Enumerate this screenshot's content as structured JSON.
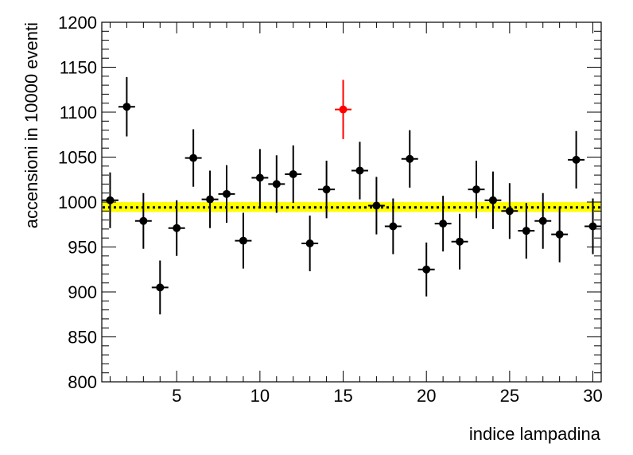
{
  "chart_data": {
    "type": "scatter",
    "title": "",
    "xlabel": "indice lampadina",
    "ylabel": "accensioni in 10000 eventi",
    "xlim": [
      0.5,
      30.5
    ],
    "ylim": [
      800,
      1200
    ],
    "x_ticks": [
      "5",
      "10",
      "15",
      "20",
      "25",
      "30"
    ],
    "y_ticks": [
      "800",
      "850",
      "900",
      "950",
      "1000",
      "1050",
      "1100",
      "1150",
      "1200"
    ],
    "grid": false,
    "mean_line": {
      "value": 994,
      "band": [
        989,
        1000
      ],
      "band_color": "#ffff00",
      "line_color": "#000000",
      "line_style": "dotted"
    },
    "series": [
      {
        "color": "#000000",
        "points": [
          {
            "x": 1,
            "y": 1002,
            "err": 31
          },
          {
            "x": 2,
            "y": 1106,
            "err": 33
          },
          {
            "x": 3,
            "y": 979,
            "err": 31
          },
          {
            "x": 4,
            "y": 905,
            "err": 30
          },
          {
            "x": 5,
            "y": 971,
            "err": 31
          },
          {
            "x": 6,
            "y": 1049,
            "err": 32
          },
          {
            "x": 7,
            "y": 1003,
            "err": 32
          },
          {
            "x": 8,
            "y": 1009,
            "err": 32
          },
          {
            "x": 9,
            "y": 957,
            "err": 31
          },
          {
            "x": 10,
            "y": 1027,
            "err": 32
          },
          {
            "x": 11,
            "y": 1020,
            "err": 32
          },
          {
            "x": 12,
            "y": 1031,
            "err": 32
          },
          {
            "x": 13,
            "y": 954,
            "err": 31
          },
          {
            "x": 14,
            "y": 1014,
            "err": 32
          },
          {
            "x": 16,
            "y": 1035,
            "err": 32
          },
          {
            "x": 17,
            "y": 996,
            "err": 32
          },
          {
            "x": 18,
            "y": 973,
            "err": 31
          },
          {
            "x": 19,
            "y": 1048,
            "err": 32
          },
          {
            "x": 20,
            "y": 925,
            "err": 30
          },
          {
            "x": 21,
            "y": 976,
            "err": 31
          },
          {
            "x": 22,
            "y": 956,
            "err": 31
          },
          {
            "x": 23,
            "y": 1014,
            "err": 32
          },
          {
            "x": 24,
            "y": 1002,
            "err": 32
          },
          {
            "x": 25,
            "y": 990,
            "err": 31
          },
          {
            "x": 26,
            "y": 968,
            "err": 31
          },
          {
            "x": 27,
            "y": 979,
            "err": 31
          },
          {
            "x": 28,
            "y": 964,
            "err": 31
          },
          {
            "x": 29,
            "y": 1047,
            "err": 32
          },
          {
            "x": 30,
            "y": 973,
            "err": 31
          }
        ]
      },
      {
        "color": "#ff0000",
        "points": [
          {
            "x": 15,
            "y": 1103,
            "err": 33
          }
        ]
      }
    ]
  }
}
